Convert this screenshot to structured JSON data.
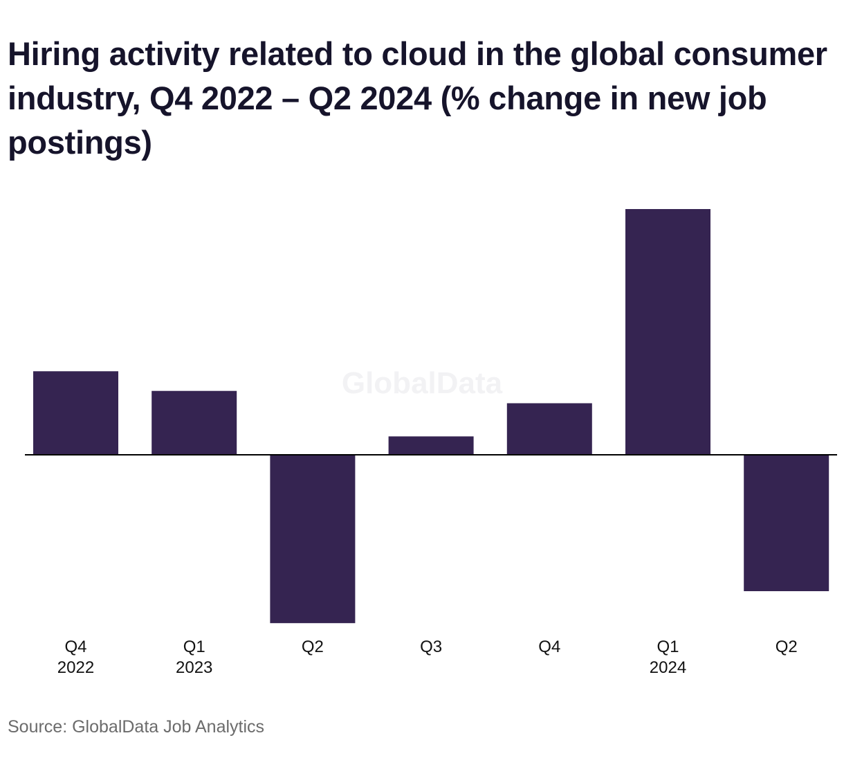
{
  "title": "Hiring activity related to cloud in the global consumer industry, Q4 2022 – Q2 2024 (% change in new job postings)",
  "source": "Source: GlobalData Job Analytics",
  "watermark": "GlobalData",
  "colors": {
    "bar": "#352451",
    "axis": "#000000",
    "title": "#16142b",
    "source": "#6b6b6b"
  },
  "chart_data": {
    "type": "bar",
    "title": "Hiring activity related to cloud in the global consumer industry, Q4 2022 – Q2 2024 (% change in new job postings)",
    "xlabel": "",
    "ylabel": "",
    "categories": [
      [
        "Q4",
        "2022"
      ],
      [
        "Q1",
        "2023"
      ],
      [
        "Q2",
        ""
      ],
      [
        "Q3",
        ""
      ],
      [
        "Q4",
        ""
      ],
      [
        "Q1",
        "2024"
      ],
      [
        "Q2",
        ""
      ]
    ],
    "values": [
      34,
      26,
      -68.5,
      7.5,
      21,
      100,
      -55.5
    ],
    "ylim": [
      -68.5,
      100
    ],
    "grid": false,
    "legend": "none",
    "value_note": "relative magnitudes; y-axis values not shown in source"
  }
}
